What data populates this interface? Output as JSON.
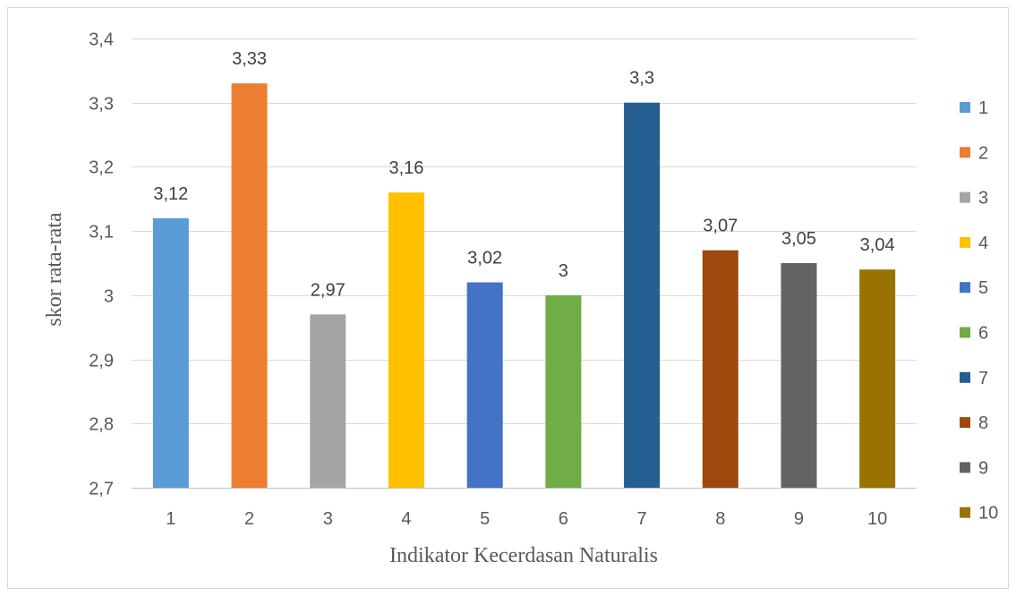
{
  "chart_data": {
    "type": "bar",
    "categories": [
      "1",
      "2",
      "3",
      "4",
      "5",
      "6",
      "7",
      "8",
      "9",
      "10"
    ],
    "values": [
      3.12,
      3.33,
      2.97,
      3.16,
      3.02,
      3.0,
      3.3,
      3.07,
      3.05,
      3.04
    ],
    "data_labels": [
      "3,12",
      "3,33",
      "2,97",
      "3,16",
      "3,02",
      "3",
      "3,3",
      "3,07",
      "3,05",
      "3,04"
    ],
    "colors": [
      "#5b9bd5",
      "#ed7d31",
      "#a5a5a5",
      "#ffc000",
      "#4472c4",
      "#70ad47",
      "#255e91",
      "#9e480e",
      "#636363",
      "#997300"
    ],
    "xlabel": "Indikator Kecerdasan Naturalis",
    "ylabel": "skor rata-rata",
    "ylim": [
      2.7,
      3.4
    ],
    "yticks": [
      2.7,
      2.8,
      2.9,
      3.0,
      3.1,
      3.2,
      3.3,
      3.4
    ],
    "ytick_labels": [
      "2,7",
      "2,8",
      "2,9",
      "3",
      "3,1",
      "3,2",
      "3,3",
      "3,4"
    ],
    "grid": true,
    "legend_position": "right",
    "legend": [
      "1",
      "2",
      "3",
      "4",
      "5",
      "6",
      "7",
      "8",
      "9",
      "10"
    ]
  }
}
